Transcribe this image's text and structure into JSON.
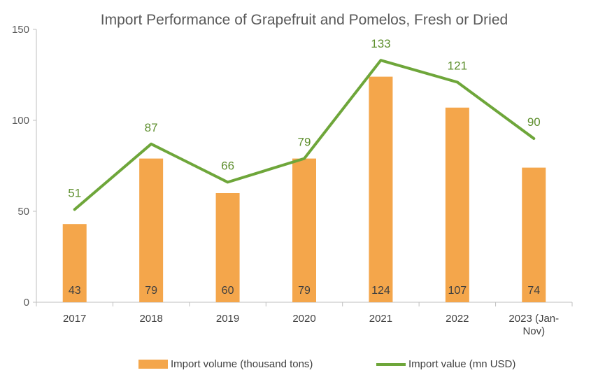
{
  "chart_data": {
    "type": "bar",
    "title": "Import Performance of Grapefruit and Pomelos, Fresh or Dried",
    "categories": [
      [
        "2017"
      ],
      [
        "2018"
      ],
      [
        "2019"
      ],
      [
        "2020"
      ],
      [
        "2021"
      ],
      [
        "2022"
      ],
      [
        "2023 (Jan-",
        "Nov)"
      ]
    ],
    "ylim": [
      0,
      150
    ],
    "yticks": [
      0,
      50,
      100,
      150
    ],
    "grid": false,
    "legend_position": "bottom",
    "series": [
      {
        "name": "Import volume (thousand tons)",
        "type": "bar",
        "color": "#F4A64B",
        "values": [
          43,
          79,
          60,
          79,
          124,
          107,
          74
        ]
      },
      {
        "name": "Import value (mn USD)",
        "type": "line",
        "color": "#6EA63A",
        "values": [
          51,
          87,
          66,
          79,
          133,
          121,
          90
        ]
      }
    ]
  }
}
